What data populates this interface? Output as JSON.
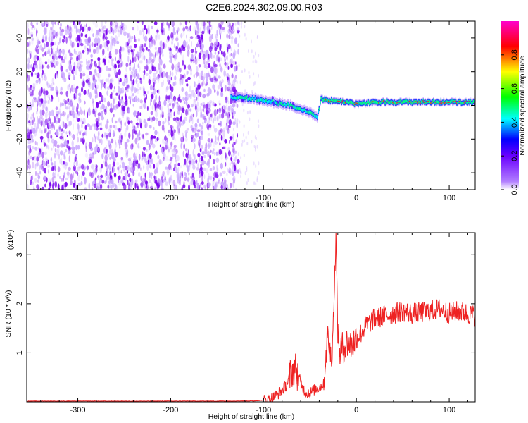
{
  "title": "C2E6.2024.302.09.00.R03",
  "colors": {
    "snr_line": "#ee2222",
    "spectrogram_noise": "#7700ee",
    "spectrogram_ridge_edge": "#2244ff",
    "spectrogram_ridge_mid": "#00ff88",
    "spectrogram_ridge_core": "#ff2222",
    "colormap": [
      "#ffffff",
      "#b07cff",
      "#6a00ff",
      "#0000ff",
      "#00ffff",
      "#00ff00",
      "#ffff00",
      "#ff0000",
      "#ff00cc"
    ]
  },
  "chart_data": [
    {
      "type": "heatmap",
      "xlabel": "Height of straight line (km)",
      "ylabel": "Frequency (Hz)",
      "xlim": [
        -355,
        128
      ],
      "ylim": [
        -50,
        50
      ],
      "x_ticks": [
        "-300",
        "-200",
        "-100",
        "0",
        "100"
      ],
      "y_ticks": [
        "40",
        "20",
        "0",
        "-20",
        "-40"
      ],
      "colorbar": {
        "label": "Normalized spectral amplitude",
        "range": [
          0,
          1
        ],
        "ticks": [
          "0.0",
          "0.2",
          "0.4",
          "0.6",
          "0.8"
        ]
      },
      "noise_region_x": [
        -355,
        -135
      ],
      "ridge": {
        "x": [
          -135,
          -110,
          -90,
          -70,
          -50,
          -42,
          -38,
          -30,
          -10,
          0,
          30,
          60,
          90,
          128
        ],
        "y": [
          5,
          4,
          2,
          0,
          -4,
          -7,
          4,
          3,
          2,
          1,
          2,
          2,
          2,
          2
        ]
      }
    },
    {
      "type": "line",
      "xlabel": "Height of straight line (km)",
      "ylabel": "SNR (10 * v/v)",
      "y_multiplier": "(x10⁴)",
      "xlim": [
        -355,
        128
      ],
      "ylim": [
        0,
        3.45
      ],
      "x_ticks": [
        "-300",
        "-200",
        "-100",
        "0",
        "100"
      ],
      "y_ticks": [
        "1",
        "2",
        "3"
      ],
      "series": [
        {
          "x": [
            -355,
            -250,
            -150,
            -110,
            -100,
            -90,
            -82,
            -75,
            -70,
            -66,
            -62,
            -58,
            -55,
            -50,
            -45,
            -40,
            -35,
            -32,
            -30,
            -28,
            -26,
            -24,
            -22,
            -20,
            -18,
            -15,
            -10,
            -5,
            0,
            5,
            10,
            20,
            30,
            40,
            50,
            60,
            70,
            80,
            90,
            100,
            110,
            120,
            128
          ],
          "y": [
            0.01,
            0.01,
            0.01,
            0.015,
            0.03,
            0.08,
            0.2,
            0.35,
            0.6,
            0.7,
            0.5,
            0.3,
            0.2,
            0.18,
            0.25,
            0.3,
            0.35,
            1.2,
            1.3,
            0.9,
            1.1,
            2.1,
            3.4,
            1.4,
            1.0,
            1.1,
            1.2,
            1.15,
            1.3,
            1.4,
            1.55,
            1.7,
            1.75,
            1.8,
            1.85,
            1.8,
            1.82,
            1.85,
            1.9,
            1.8,
            1.85,
            1.8,
            1.75
          ]
        }
      ]
    }
  ]
}
